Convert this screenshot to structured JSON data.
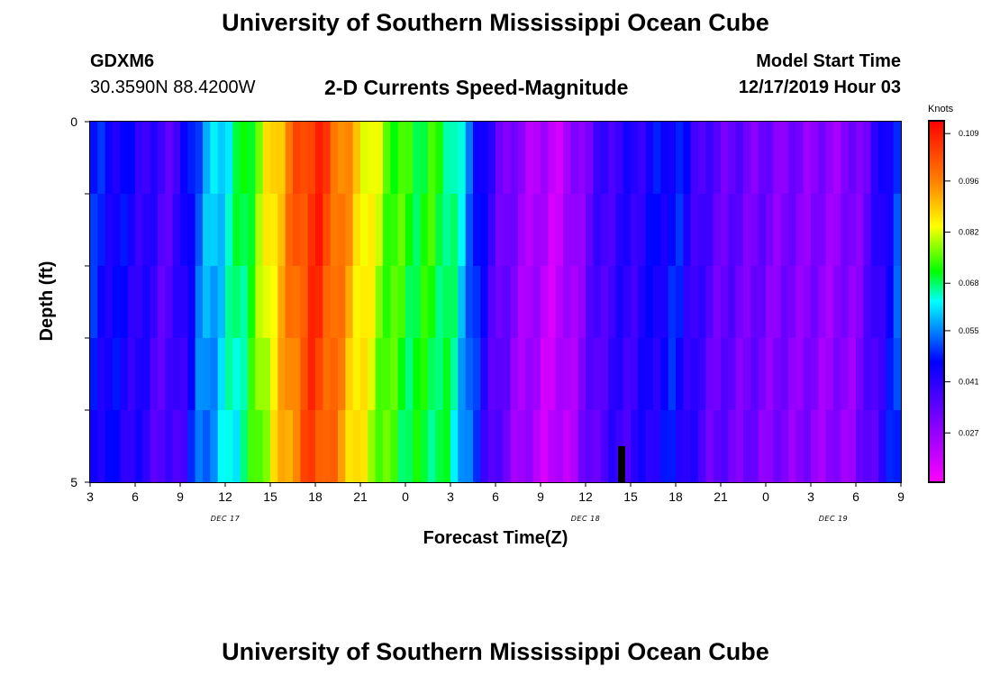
{
  "page": {
    "title": "University of Southern Mississippi Ocean Cube",
    "footer_title": "University of Southern Mississippi Ocean Cube",
    "station": "GDXM6",
    "coordinates": "30.3590N 88.4200W",
    "subtitle": "2-D Currents Speed-Magnitude",
    "model_start_label": "Model Start Time",
    "model_start_value": "12/17/2019 Hour 03"
  },
  "chart_data": {
    "type": "heatmap",
    "title": "2-D Currents Speed-Magnitude",
    "xlabel": "Forecast Time(Z)",
    "ylabel": "Depth (ft)",
    "x_tick_labels": [
      "3",
      "6",
      "9",
      "12",
      "15",
      "18",
      "21",
      "0",
      "3",
      "6",
      "9",
      "12",
      "15",
      "18",
      "21",
      "0",
      "3",
      "6",
      "9"
    ],
    "x_range_hours": [
      0,
      54
    ],
    "date_labels": [
      {
        "text": "DEC 17",
        "hour": 9
      },
      {
        "text": "DEC 18",
        "hour": 33
      },
      {
        "text": "DEC 19",
        "hour": 49.5
      }
    ],
    "y_tick_labels": [
      "0",
      "5"
    ],
    "y_range": [
      0,
      5
    ],
    "depth_rows": [
      0,
      1,
      2,
      3,
      4
    ],
    "colorbar": {
      "unit": "Knots",
      "min": 0.0135,
      "max": 0.1125,
      "tick_values": [
        0.109,
        0.096,
        0.082,
        0.068,
        0.055,
        0.041,
        0.027
      ],
      "tick_labels": [
        "0.109",
        "0.096",
        "0.082",
        "0.068",
        "0.055",
        "0.041",
        "0.027"
      ]
    },
    "time_columns": 108,
    "depth_profile_multipliers": [
      1.0,
      1.0,
      0.99,
      0.98,
      0.97
    ],
    "speed_keyframes": {
      "hours": [
        0,
        1,
        2,
        3,
        4,
        5,
        6,
        7,
        8,
        9,
        10,
        11,
        12,
        13,
        14,
        15,
        16,
        17,
        18,
        19,
        20,
        21,
        22,
        23,
        24,
        25,
        26,
        27,
        28,
        29,
        30,
        31,
        32,
        33,
        34,
        35,
        36,
        37,
        38,
        39,
        40,
        41,
        42,
        43,
        44,
        45,
        46,
        47,
        48,
        49,
        50,
        51,
        52,
        53,
        54
      ],
      "knots": [
        0.048,
        0.046,
        0.045,
        0.043,
        0.04,
        0.036,
        0.039,
        0.052,
        0.058,
        0.063,
        0.068,
        0.075,
        0.086,
        0.094,
        0.103,
        0.108,
        0.102,
        0.094,
        0.087,
        0.081,
        0.075,
        0.072,
        0.071,
        0.072,
        0.068,
        0.058,
        0.045,
        0.036,
        0.03,
        0.026,
        0.023,
        0.021,
        0.025,
        0.032,
        0.038,
        0.04,
        0.041,
        0.043,
        0.046,
        0.048,
        0.042,
        0.036,
        0.034,
        0.033,
        0.032,
        0.031,
        0.03,
        0.03,
        0.029,
        0.028,
        0.028,
        0.03,
        0.036,
        0.045,
        0.052
      ]
    }
  }
}
